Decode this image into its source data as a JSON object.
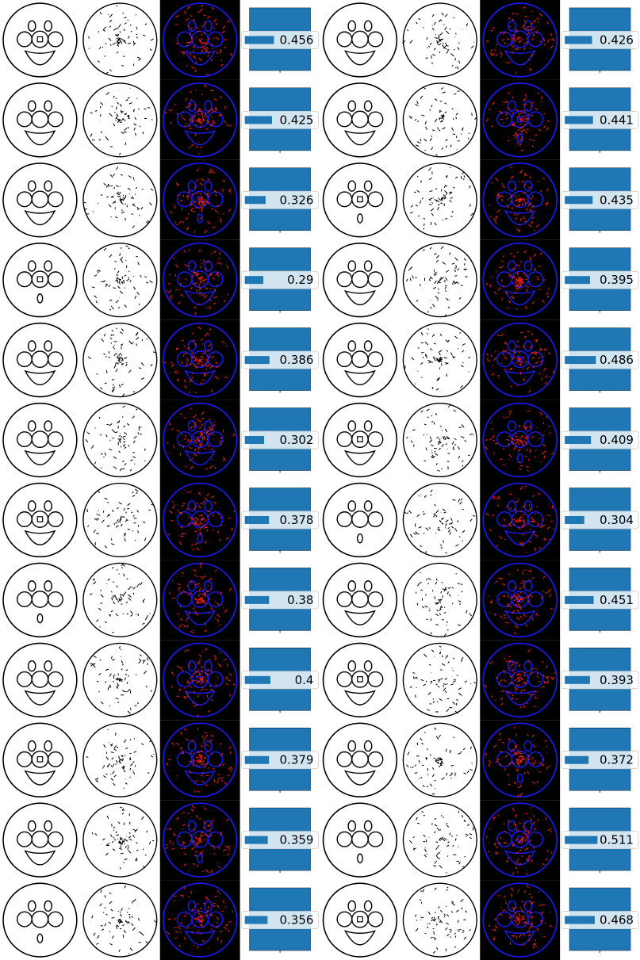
{
  "chart_data": {
    "type": "bar",
    "layout": "12 rows x 2 groups; each group = query sketch, retrieved sketch, red/blue overlay, similarity bar",
    "colors": {
      "bar": "#1f77b4",
      "overlay_bg": "#000000",
      "overlay_a": "#ff1a1a",
      "overlay_b": "#1a1aff",
      "stroke": "#000000"
    },
    "rows": [
      {
        "left": {
          "score": "0.456",
          "value": 0.456
        },
        "right": {
          "score": "0.426",
          "value": 0.426
        }
      },
      {
        "left": {
          "score": "0.425",
          "value": 0.425
        },
        "right": {
          "score": "0.441",
          "value": 0.441
        }
      },
      {
        "left": {
          "score": "0.326",
          "value": 0.326
        },
        "right": {
          "score": "0.435",
          "value": 0.435
        }
      },
      {
        "left": {
          "score": "0.29",
          "value": 0.29
        },
        "right": {
          "score": "0.395",
          "value": 0.395
        }
      },
      {
        "left": {
          "score": "0.386",
          "value": 0.386
        },
        "right": {
          "score": "0.486",
          "value": 0.486
        }
      },
      {
        "left": {
          "score": "0.302",
          "value": 0.302
        },
        "right": {
          "score": "0.409",
          "value": 0.409
        }
      },
      {
        "left": {
          "score": "0.378",
          "value": 0.378
        },
        "right": {
          "score": "0.304",
          "value": 0.304
        }
      },
      {
        "left": {
          "score": "0.38",
          "value": 0.38
        },
        "right": {
          "score": "0.451",
          "value": 0.451
        }
      },
      {
        "left": {
          "score": "0.4",
          "value": 0.4
        },
        "right": {
          "score": "0.393",
          "value": 0.393
        }
      },
      {
        "left": {
          "score": "0.379",
          "value": 0.379
        },
        "right": {
          "score": "0.372",
          "value": 0.372
        }
      },
      {
        "left": {
          "score": "0.359",
          "value": 0.359
        },
        "right": {
          "score": "0.511",
          "value": 0.511
        }
      },
      {
        "left": {
          "score": "0.356",
          "value": 0.356
        },
        "right": {
          "score": "0.468",
          "value": 0.468
        }
      }
    ]
  }
}
